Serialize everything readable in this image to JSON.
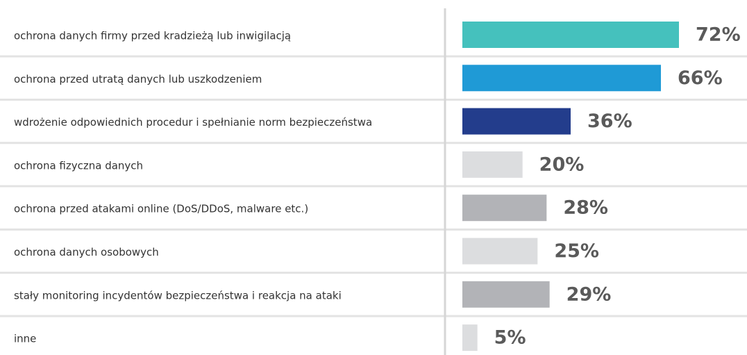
{
  "chart_data": {
    "type": "bar",
    "orientation": "horizontal",
    "categories": [
      "ochrona danych firmy przed kradzieżą lub inwigilacją",
      "ochrona przed utratą danych lub uszkodzeniem",
      "wdrożenie odpowiednich procedur i spełnianie norm bezpieczeństwa",
      "ochrona fizyczna danych",
      "ochrona przed atakami online (DoS/DDoS, malware etc.)",
      "ochrona danych osobowych",
      "stały monitoring incydentów bezpieczeństwa i reakcja na ataki",
      "inne"
    ],
    "values": [
      72,
      66,
      36,
      20,
      28,
      25,
      29,
      5
    ],
    "value_labels": [
      "72%",
      "66%",
      "36%",
      "20%",
      "28%",
      "25%",
      "29%",
      "5%"
    ],
    "colors": [
      "#45c1bd",
      "#1f9ad6",
      "#233d8c",
      "#dcdddf",
      "#b2b3b7",
      "#dcdddf",
      "#b2b3b7",
      "#dcdddf"
    ]
  }
}
